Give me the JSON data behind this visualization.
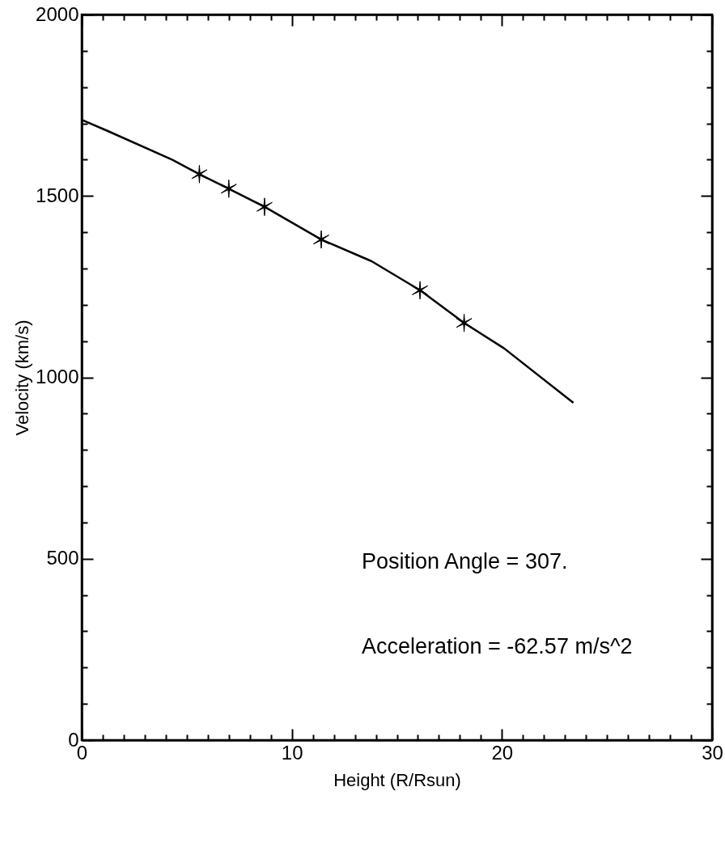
{
  "chart_data": {
    "type": "line",
    "xlabel": "Height (R/Rsun)",
    "ylabel": "Velocity (km/s)",
    "annotations": [
      "Position Angle =  307.",
      "Acceleration = -62.57 m/s^2"
    ],
    "series": [
      {
        "type": "line",
        "color": "#000000",
        "x": [
          0,
          1.2,
          4.3,
          5.6,
          7,
          8.7,
          11.4,
          13.8,
          16.1,
          18.2,
          20.1,
          23.4
        ],
        "values": [
          1710,
          1680,
          1600,
          1560,
          1520,
          1470,
          1380,
          1320,
          1240,
          1150,
          1080,
          930
        ]
      },
      {
        "type": "scatter",
        "color": "#000000",
        "marker": "cross",
        "x": [
          5.6,
          7,
          8.7,
          11.4,
          16.1,
          18.2
        ],
        "values": [
          1560,
          1520,
          1470,
          1380,
          1240,
          1150
        ]
      }
    ],
    "xlim": [
      0,
      30
    ],
    "ylim": [
      0,
      2000
    ],
    "xticks": [
      0,
      {
        "value": 1,
        "label": null
      },
      {
        "value": 2,
        "label": null
      },
      {
        "value": 3,
        "label": null
      },
      {
        "value": 4,
        "label": null
      },
      {
        "value": 5,
        "label": null
      },
      {
        "value": 6,
        "label": null
      },
      {
        "value": 7,
        "label": null
      },
      {
        "value": 8,
        "label": null
      },
      {
        "value": 9,
        "label": null
      },
      10,
      {
        "value": 11,
        "label": null
      },
      {
        "value": 12,
        "label": null
      },
      {
        "value": 13,
        "label": null
      },
      {
        "value": 14,
        "label": null
      },
      {
        "value": 15,
        "label": null
      },
      {
        "value": 16,
        "label": null
      },
      {
        "value": 17,
        "label": null
      },
      {
        "value": 18,
        "label": null
      },
      {
        "value": 19,
        "label": null
      },
      20,
      {
        "value": 21,
        "label": null
      },
      {
        "value": 22,
        "label": null
      },
      {
        "value": 23,
        "label": null
      },
      {
        "value": 24,
        "label": null
      },
      {
        "value": 25,
        "label": null
      },
      {
        "value": 26,
        "label": null
      },
      {
        "value": 27,
        "label": null
      },
      {
        "value": 28,
        "label": null
      },
      {
        "value": 29,
        "label": null
      },
      30
    ],
    "yticks": [
      0,
      {
        "value": 100,
        "label": null
      },
      {
        "value": 200,
        "label": null
      },
      {
        "value": 300,
        "label": null
      },
      {
        "value": 400,
        "label": null
      },
      500,
      {
        "value": 600,
        "label": null
      },
      {
        "value": 700,
        "label": null
      },
      {
        "value": 800,
        "label": null
      },
      {
        "value": 900,
        "label": null
      },
      1000,
      {
        "value": 1100,
        "label": null
      },
      {
        "value": 1200,
        "label": null
      },
      {
        "value": 1300,
        "label": null
      },
      {
        "value": 1400,
        "label": null
      },
      1500,
      {
        "value": 1600,
        "label": null
      },
      {
        "value": 1700,
        "label": null
      },
      {
        "value": 1800,
        "label": null
      },
      {
        "value": 1900,
        "label": null
      },
      2000
    ],
    "grid": false
  }
}
